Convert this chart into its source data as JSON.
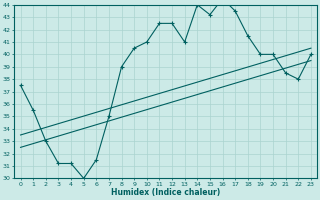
{
  "title": "",
  "xlabel": "Humidex (Indice chaleur)",
  "ylabel": "",
  "bg_color": "#cceae7",
  "line_color": "#006060",
  "grid_color": "#aad4d0",
  "xlim": [
    -0.5,
    23.5
  ],
  "ylim": [
    30,
    44
  ],
  "yticks": [
    30,
    31,
    32,
    33,
    34,
    35,
    36,
    37,
    38,
    39,
    40,
    41,
    42,
    43,
    44
  ],
  "xticks": [
    0,
    1,
    2,
    3,
    4,
    5,
    6,
    7,
    8,
    9,
    10,
    11,
    12,
    13,
    14,
    15,
    16,
    17,
    18,
    19,
    20,
    21,
    22,
    23
  ],
  "line1_x": [
    0,
    1,
    2,
    3,
    4,
    5,
    6,
    7,
    8,
    9,
    10,
    11,
    12,
    13,
    14,
    15,
    16,
    17,
    18,
    19,
    20,
    21,
    22,
    23
  ],
  "line1_y": [
    37.5,
    35.5,
    33.0,
    31.2,
    31.2,
    30.0,
    31.5,
    35.0,
    39.0,
    40.5,
    41.0,
    42.5,
    42.5,
    41.0,
    44.0,
    43.2,
    44.5,
    43.5,
    41.5,
    40.0,
    40.0,
    38.5,
    38.0,
    40.0
  ],
  "line2_x": [
    0,
    23
  ],
  "line2_y": [
    32.5,
    39.5
  ],
  "line3_x": [
    0,
    23
  ],
  "line3_y": [
    33.5,
    40.5
  ],
  "tick_fontsize": 4.5,
  "label_fontsize": 5.5
}
